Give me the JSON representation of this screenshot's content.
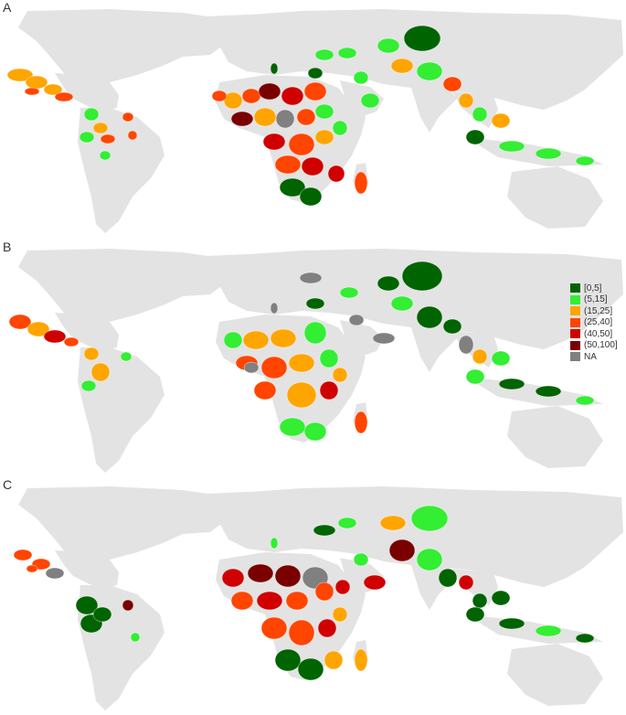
{
  "panels": [
    {
      "label": "A"
    },
    {
      "label": "B"
    },
    {
      "label": "C"
    }
  ],
  "legend": [
    {
      "label": "[0,5]",
      "color": "#006400"
    },
    {
      "label": "(5,15]",
      "color": "#33ee33"
    },
    {
      "label": "(15,25]",
      "color": "#ffa500"
    },
    {
      "label": "(25,40]",
      "color": "#ff4500"
    },
    {
      "label": "(40,50]",
      "color": "#d00000"
    },
    {
      "label": "(50,100]",
      "color": "#7a0000"
    },
    {
      "label": "NA",
      "color": "#808080"
    }
  ],
  "colors": {
    "land": "#e3e3e3",
    "background": "#ffffff"
  }
}
